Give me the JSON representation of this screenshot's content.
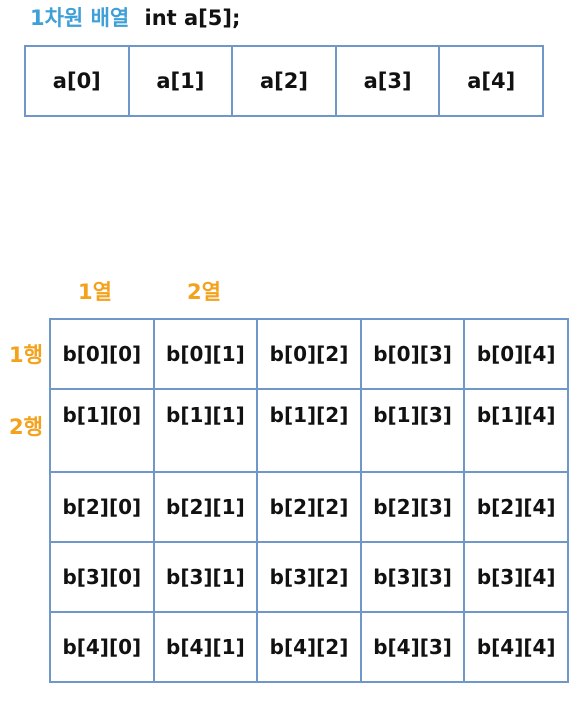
{
  "title": {
    "korean": "1차원 배열",
    "code": "int a[5];"
  },
  "array_a": {
    "cells": [
      "a[0]",
      "a[1]",
      "a[2]",
      "a[3]",
      "a[4]"
    ]
  },
  "array_b": {
    "column_labels": [
      "1열",
      "2열"
    ],
    "row_labels": [
      "1행",
      "2행"
    ],
    "rows": [
      [
        "b[0][0]",
        "b[0][1]",
        "b[0][2]",
        "b[0][3]",
        "b[0][4]"
      ],
      [
        "b[1][0]",
        "b[1][1]",
        "b[1][2]",
        "b[1][3]",
        "b[1][4]"
      ],
      [
        "b[2][0]",
        "b[2][1]",
        "b[2][2]",
        "b[2][3]",
        "b[2][4]"
      ],
      [
        "b[3][0]",
        "b[3][1]",
        "b[3][2]",
        "b[3][3]",
        "b[3][4]"
      ],
      [
        "b[4][0]",
        "b[4][1]",
        "b[4][2]",
        "b[4][3]",
        "b[4][4]"
      ]
    ]
  },
  "colors": {
    "title_blue": "#3fa0d8",
    "label_orange": "#f4a11b",
    "cell_border": "#6f98c9",
    "text": "#111111"
  }
}
